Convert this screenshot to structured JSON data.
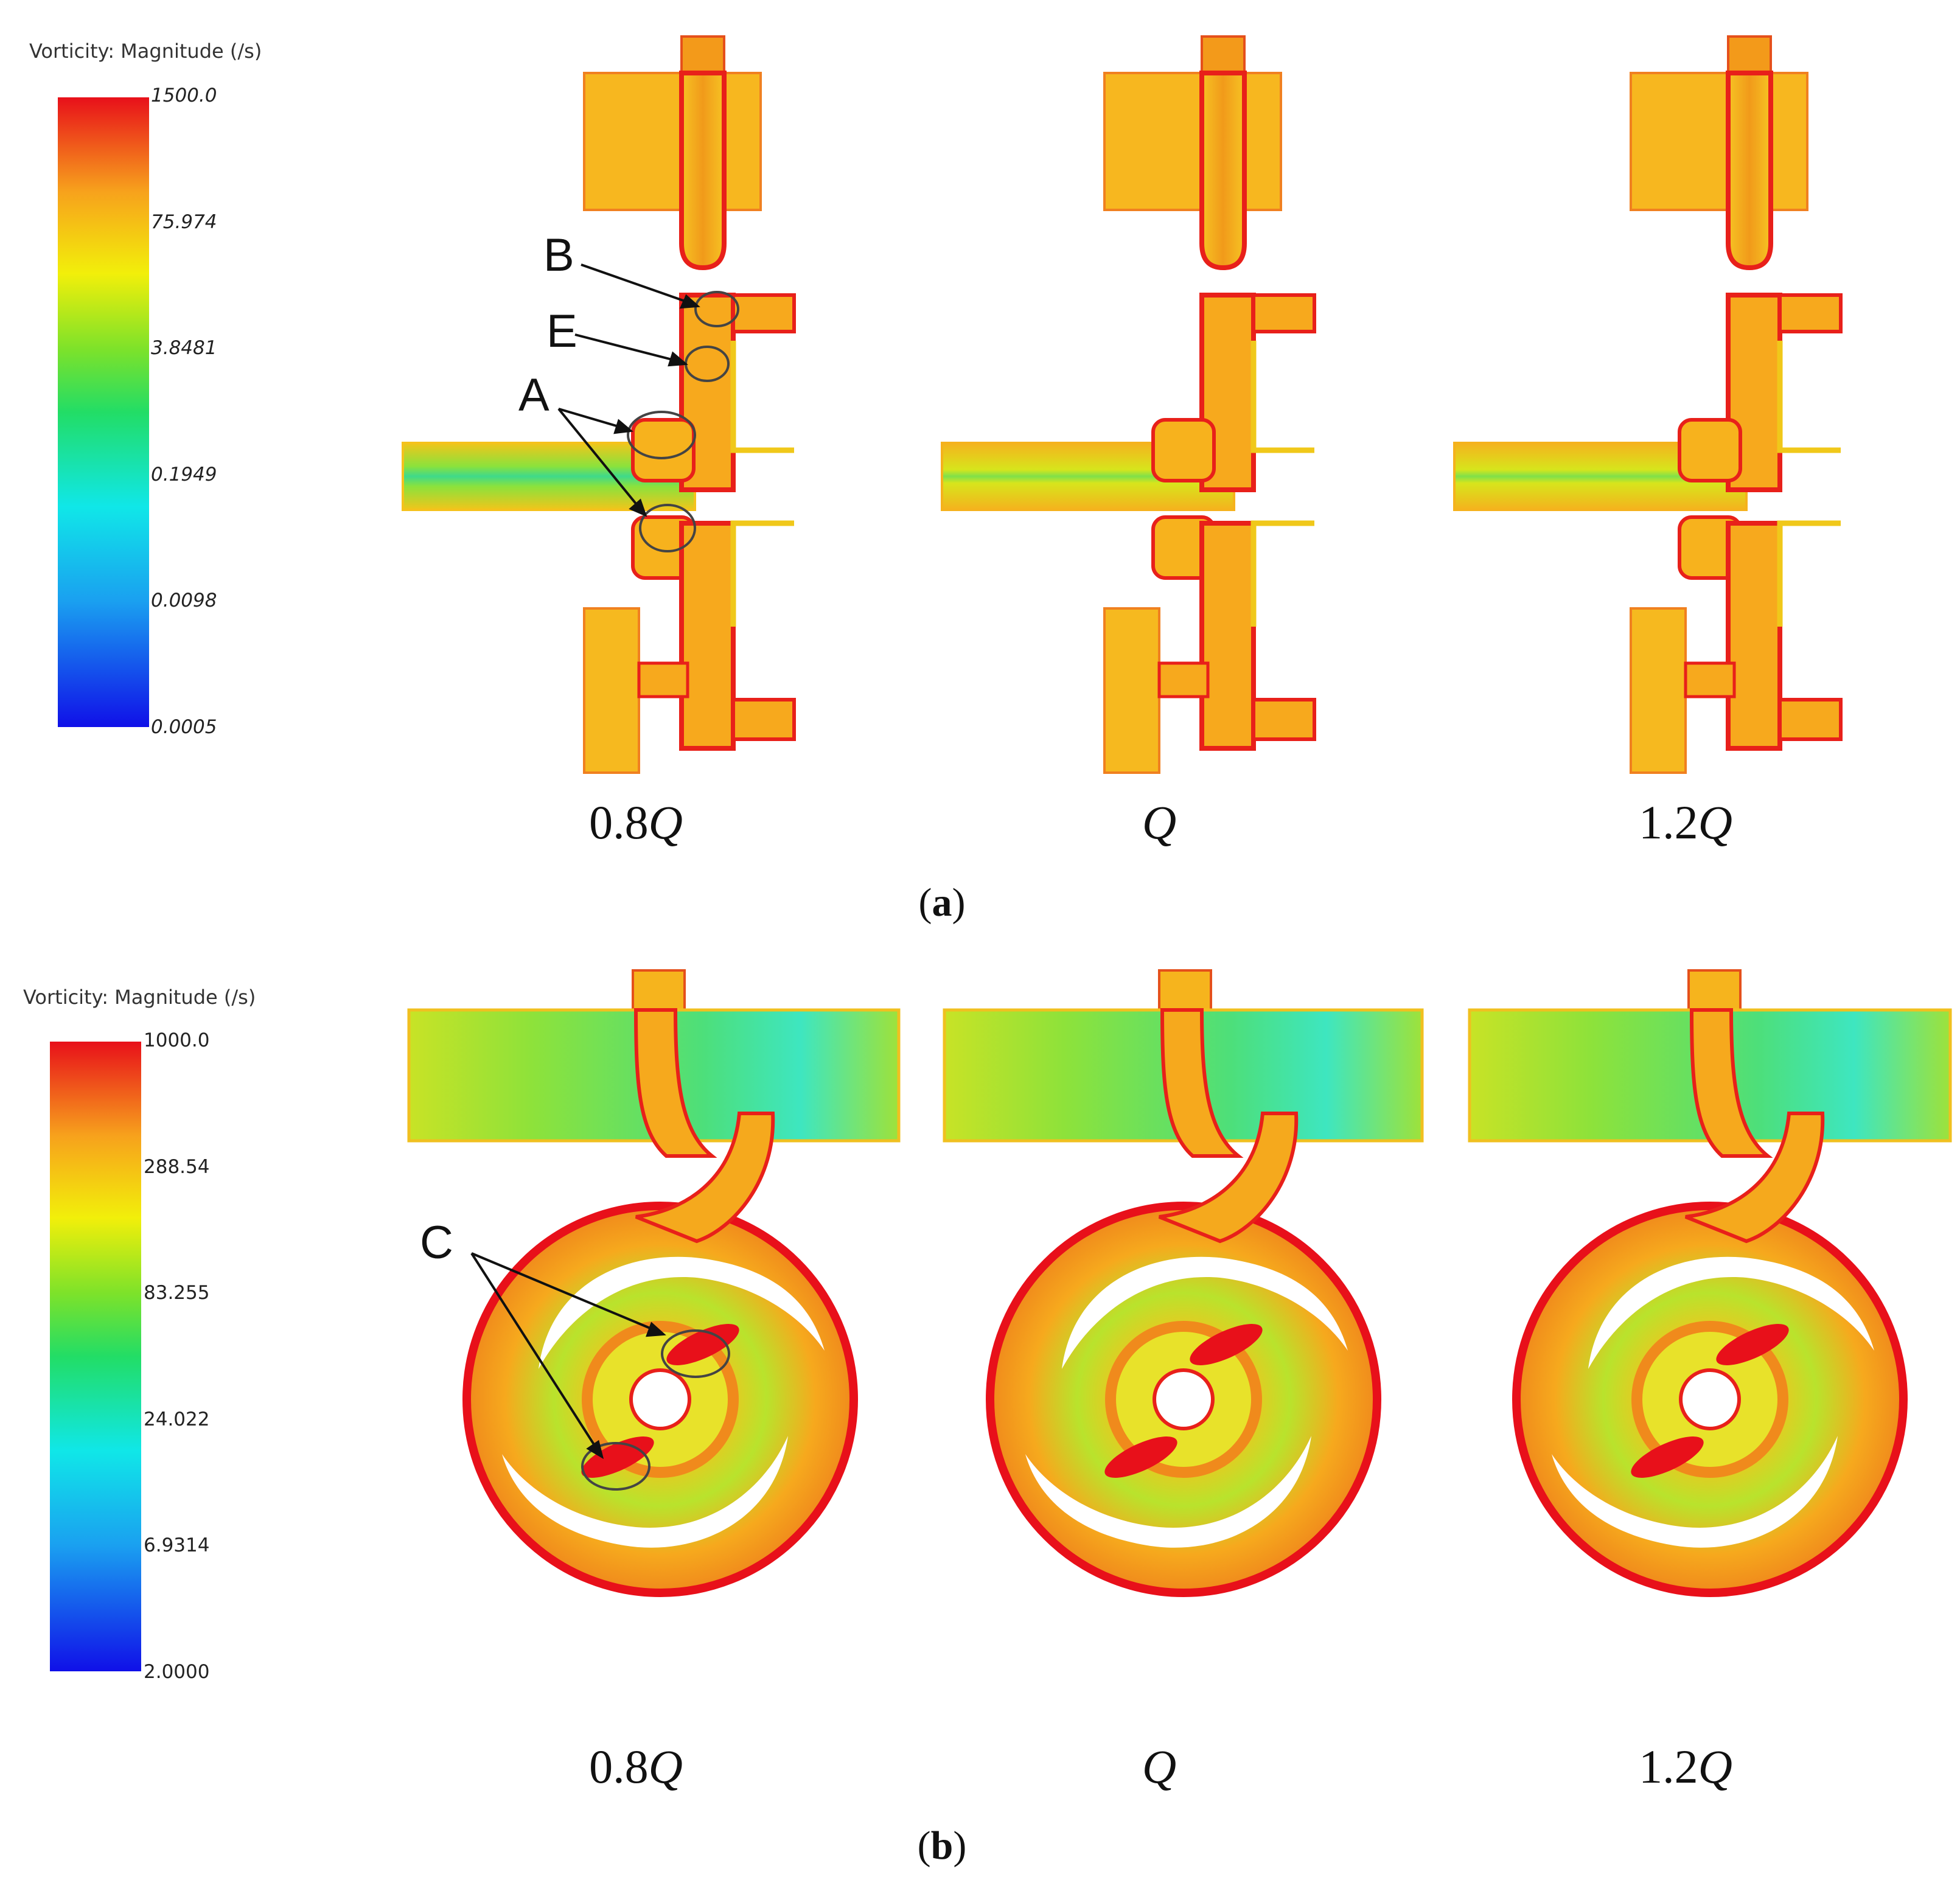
{
  "panels": [
    {
      "label": "a",
      "legend": {
        "title": "Vorticity: Magnitude (/s)",
        "ticks": [
          "1500.0",
          "75.974",
          "3.8481",
          "0.1949",
          "0.0098",
          "0.0005"
        ]
      },
      "cases": [
        "0.8",
        "",
        "1.2"
      ],
      "case_symbol": "Q",
      "annotations": [
        "B",
        "E",
        "A"
      ]
    },
    {
      "label": "b",
      "legend": {
        "title": "Vorticity: Magnitude (/s)",
        "ticks": [
          "1000.0",
          "288.54",
          "83.255",
          "24.022",
          "6.9314",
          "2.0000"
        ]
      },
      "cases": [
        "0.8",
        "",
        "1.2"
      ],
      "case_symbol": "Q",
      "annotations": [
        "C"
      ]
    }
  ],
  "colors": {
    "high": "#e8101a",
    "mid_high": "#f7a21c",
    "mid": "#f2ef0a",
    "low_mid": "#35d94a",
    "low": "#10e7e8",
    "lowest": "#1010e8"
  }
}
